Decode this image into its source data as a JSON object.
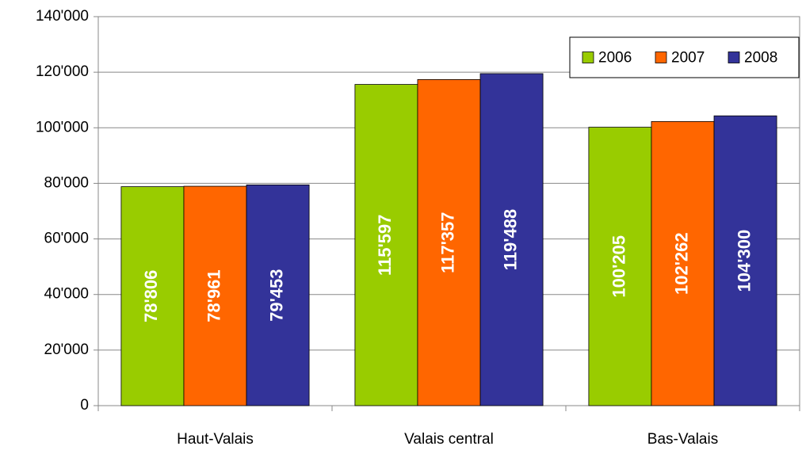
{
  "chart_data": {
    "type": "bar",
    "categories": [
      "Haut-Valais",
      "Valais central",
      "Bas-Valais"
    ],
    "series": [
      {
        "name": "2006",
        "color": "#99cc00",
        "values": [
          78806,
          115597,
          100205
        ],
        "value_labels": [
          "78'806",
          "115'597",
          "100'205"
        ]
      },
      {
        "name": "2007",
        "color": "#ff6600",
        "values": [
          78961,
          117357,
          102262
        ],
        "value_labels": [
          "78'961",
          "117'357",
          "102'262"
        ]
      },
      {
        "name": "2008",
        "color": "#333399",
        "values": [
          79453,
          119488,
          104300
        ],
        "value_labels": [
          "79'453",
          "119'488",
          "104'300"
        ]
      }
    ],
    "ylim": [
      0,
      140000
    ],
    "yticks": [
      0,
      {
        "value": 20000,
        "label": "20'000"
      },
      {
        "value": 40000,
        "label": "40'000"
      },
      {
        "value": 60000,
        "label": "60'000"
      },
      {
        "value": 80000,
        "label": "80'000"
      },
      {
        "value": 100000,
        "label": "100'000"
      },
      {
        "value": 120000,
        "label": "120'000"
      },
      {
        "value": 140000,
        "label": "140'000"
      }
    ],
    "grid": true,
    "legend": "top-right"
  }
}
